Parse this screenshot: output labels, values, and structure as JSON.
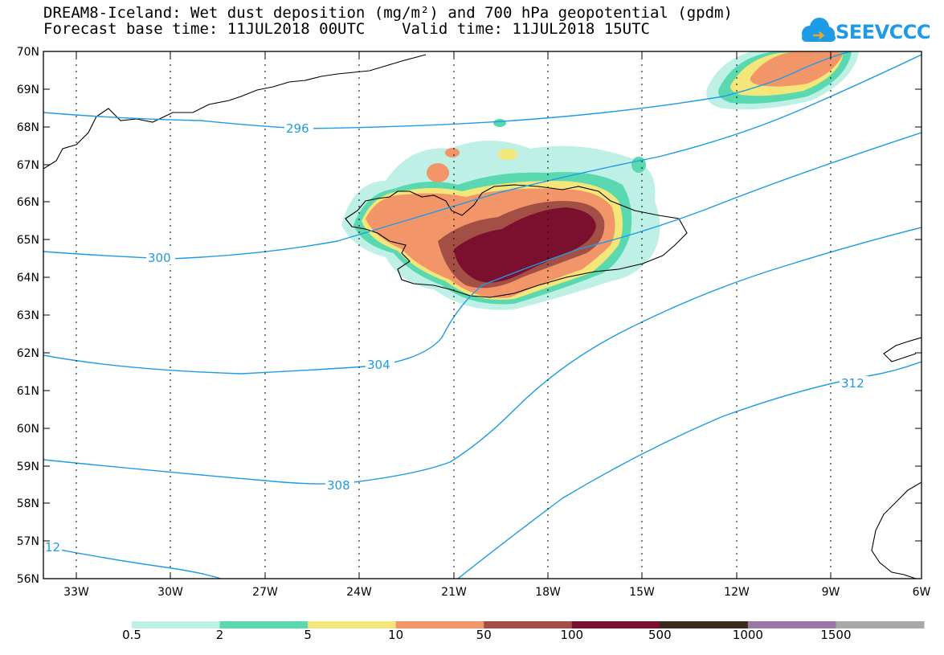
{
  "header": {
    "title_line1": "DREAM8-Iceland: Wet dust deposition (mg/m²) and 700 hPa geopotential (gpdm)",
    "title_line2": "Forecast base time: 11JUL2018 00UTC    Valid time: 11JUL2018 15UTC"
  },
  "logo": {
    "text": "SEEVCCC",
    "icon": "cloud-logo-icon",
    "color": "#1e9be6"
  },
  "map": {
    "lat_labels": [
      "70N",
      "69N",
      "68N",
      "67N",
      "66N",
      "65N",
      "64N",
      "63N",
      "62N",
      "61N",
      "60N",
      "59N",
      "58N",
      "57N",
      "56N"
    ],
    "lon_labels": [
      "33W",
      "30W",
      "27W",
      "24W",
      "21W",
      "18W",
      "15W",
      "12W",
      "9W",
      "6W"
    ],
    "lon_range": [
      -34.0,
      -6.0
    ],
    "lat_range": [
      56.0,
      70.0
    ],
    "contour_color": "#1e9be6",
    "contour_labels": [
      "296",
      "300",
      "304",
      "308",
      "312",
      "12"
    ]
  },
  "colorbar": {
    "colors": [
      "#bff0e6",
      "#5ad9b0",
      "#f5e67a",
      "#f2966a",
      "#a34f45",
      "#7a0f2e",
      "#3a2a1c",
      "#9a76a9",
      "#a8a8a8"
    ],
    "labels": [
      "0.5",
      "2",
      "5",
      "10",
      "50",
      "100",
      "500",
      "1000",
      "1500"
    ]
  }
}
